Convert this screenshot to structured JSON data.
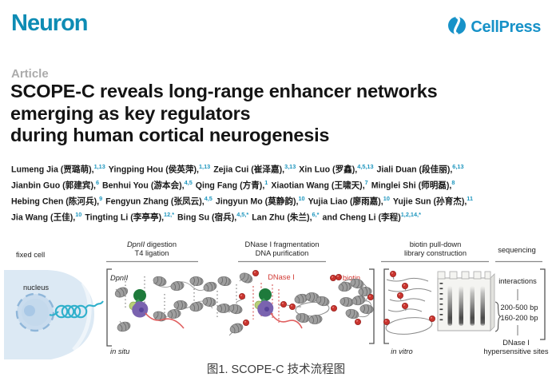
{
  "journal": {
    "name": "Neuron",
    "publisher": "CellPress"
  },
  "article": {
    "type": "Article",
    "title_lines": [
      "SCOPE-C reveals long-range enhancer networks",
      "emerging as key regulators",
      "during human cortical neurogenesis"
    ],
    "author_lines": [
      [
        {
          "n": "Lumeng Jia (贾璐萌),",
          "s": "1,13"
        },
        {
          "n": "Yingping Hou (侯英萍),",
          "s": "1,13"
        },
        {
          "n": "Zejia Cui (崔泽嘉),",
          "s": "3,13"
        },
        {
          "n": "Xin Luo (罗鑫),",
          "s": "4,5,13"
        },
        {
          "n": "Jiali Duan (段佳丽),",
          "s": "6,13"
        }
      ],
      [
        {
          "n": "Jianbin Guo (郭建宾),",
          "s": "6"
        },
        {
          "n": "Benhui You (游本会),",
          "s": "4,5"
        },
        {
          "n": "Qing Fang (方青),",
          "s": "1"
        },
        {
          "n": "Xiaotian Wang (王啸天),",
          "s": "7"
        },
        {
          "n": "Minglei Shi (师明磊),",
          "s": "8"
        }
      ],
      [
        {
          "n": "Hebing Chen (陈河兵),",
          "s": "9"
        },
        {
          "n": "Fengyun Zhang (张凤云),",
          "s": "4,5"
        },
        {
          "n": "Jingyun Mo (莫静韵),",
          "s": "10"
        },
        {
          "n": "Yujia Liao (廖雨嘉),",
          "s": "10"
        },
        {
          "n": "Yujie Sun (孙育杰),",
          "s": "11"
        }
      ],
      [
        {
          "n": "Jia Wang (王佳),",
          "s": "10"
        },
        {
          "n": "Tingting Li (李亭亭),",
          "s": "12,*"
        },
        {
          "n": "Bing Su (宿兵),",
          "s": "4,5,*"
        },
        {
          "n": "Lan Zhu (朱兰),",
          "s": "6,*"
        },
        {
          "n": "and Cheng Li (李程)",
          "s": "1,2,14,*"
        }
      ]
    ]
  },
  "figure": {
    "steps": {
      "step1_line1_italic": "DpnII",
      "step1_line1_rest": " digestion",
      "step1_line2": "T4 ligation",
      "step2_line1": "DNase I fragmentation",
      "step2_line2": "DNA purification",
      "step3_line1": "biotin pull-down",
      "step3_line2": "library construction",
      "step4": "sequencing"
    },
    "labels": {
      "fixed_cell": "fixed cell",
      "nucleus": "nucleus",
      "dpnii": "DpnII",
      "in_situ": "in situ",
      "dnase_i": "DNase I",
      "biotin": "biotin",
      "in_vitro": "in vitro",
      "interactions": "interactions",
      "band_upper": "200-500 bp",
      "band_lower": "160-200 bp",
      "dhs_line1": "DNase I",
      "dhs_line2": "hypersensitive sites"
    },
    "caption": "图1. SCOPE-C 技术流程图"
  },
  "colors": {
    "brand_teal": "#0E8CB4",
    "cellpress_blue": "#1792C8",
    "superscript_teal": "#1E96BE",
    "article_gray": "#ABABAB",
    "figure_red": "#D23B35",
    "nucleosome_gray": "#9E9E9E",
    "enzyme_green_dark": "#1E7A3B",
    "enzyme_green_light": "#B8CF78",
    "enzyme_purple": "#7A63AF",
    "cell_blue": "#DCE9F4",
    "coil_teal": "#2FB0CB"
  }
}
